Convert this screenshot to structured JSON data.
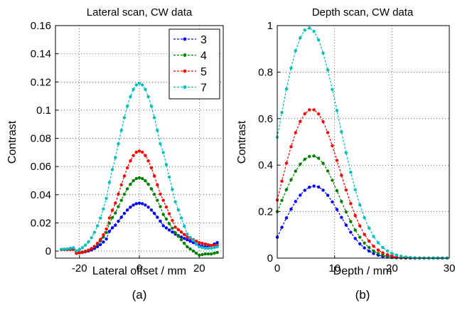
{
  "chart_data": [
    {
      "type": "line",
      "title": "Lateral scan, CW data",
      "xlabel": "Lateral offset / mm",
      "ylabel": "Contrast",
      "panel_label": "(a)",
      "xlim": [
        -28,
        28
      ],
      "ylim": [
        -0.005,
        0.16
      ],
      "xticks": [
        -20,
        0,
        20
      ],
      "yticks": [
        0,
        0.02,
        0.04,
        0.06,
        0.08,
        0.1,
        0.12,
        0.14,
        0.16
      ],
      "ytick_labels": [
        "0",
        "0.02",
        "0.04",
        "0.06",
        "0.08",
        "0.1",
        "0.12",
        "0.14",
        "0.16"
      ],
      "grid": true,
      "legend_position": "top-right",
      "series": [
        {
          "name": "3",
          "color": "#0000ff",
          "peak_x": 0,
          "peak": 0.034,
          "sigma": 7.2,
          "offset": 0.0,
          "tail_x": [
            8,
            12,
            16,
            20,
            22,
            24,
            26
          ],
          "tail_y": [
            0.018,
            0.012,
            0.008,
            0.004,
            0.003,
            0.004,
            0.006
          ]
        },
        {
          "name": "4",
          "color": "#008000",
          "peak_x": 0,
          "peak": 0.052,
          "sigma": 7.0,
          "offset": 0.0,
          "tail_x": [
            8,
            12,
            16,
            18,
            20,
            22,
            24,
            26
          ],
          "tail_y": [
            0.026,
            0.013,
            0.003,
            0.0,
            -0.003,
            -0.002,
            -0.002,
            -0.001
          ]
        },
        {
          "name": "5",
          "color": "#ff0000",
          "peak_x": 0,
          "peak": 0.071,
          "sigma": 6.6,
          "offset": 0.0,
          "tail_x": [
            8,
            12,
            16,
            20,
            22,
            24,
            26
          ],
          "tail_y": [
            0.036,
            0.017,
            0.01,
            0.006,
            0.005,
            0.004,
            0.004
          ]
        },
        {
          "name": "7",
          "color": "#00bfbf",
          "peak_x": 0,
          "peak": 0.119,
          "sigma": 7.4,
          "offset": 0.0,
          "tail_x": [
            8,
            12,
            16,
            20,
            22,
            24,
            26
          ],
          "tail_y": [
            0.07,
            0.035,
            0.012,
            0.003,
            0.002,
            0.002,
            0.003
          ]
        }
      ]
    },
    {
      "type": "line",
      "title": "Depth scan, CW data",
      "xlabel": "Depth / mm",
      "ylabel": "Contrast",
      "panel_label": "(b)",
      "xlim": [
        0,
        30
      ],
      "ylim": [
        0,
        1
      ],
      "xticks": [
        0,
        10,
        20,
        30
      ],
      "yticks": [
        0,
        0.2,
        0.4,
        0.6,
        0.8,
        1
      ],
      "ytick_labels": [
        "0",
        "0.2",
        "0.4",
        "0.6",
        "0.8",
        "1"
      ],
      "grid": true,
      "series": [
        {
          "name": "3",
          "color": "#0000ff",
          "peak_x": 6.5,
          "peak": 0.31,
          "start": 0.09,
          "sigma": 4.4
        },
        {
          "name": "4",
          "color": "#008000",
          "peak_x": 6.2,
          "peak": 0.44,
          "start": 0.2,
          "sigma": 4.6
        },
        {
          "name": "5",
          "color": "#ff0000",
          "peak_x": 6.0,
          "peak": 0.64,
          "start": 0.25,
          "sigma": 4.8
        },
        {
          "name": "7",
          "color": "#00bfbf",
          "peak_x": 5.5,
          "peak": 0.99,
          "start": 0.52,
          "sigma": 5.2
        }
      ]
    }
  ]
}
